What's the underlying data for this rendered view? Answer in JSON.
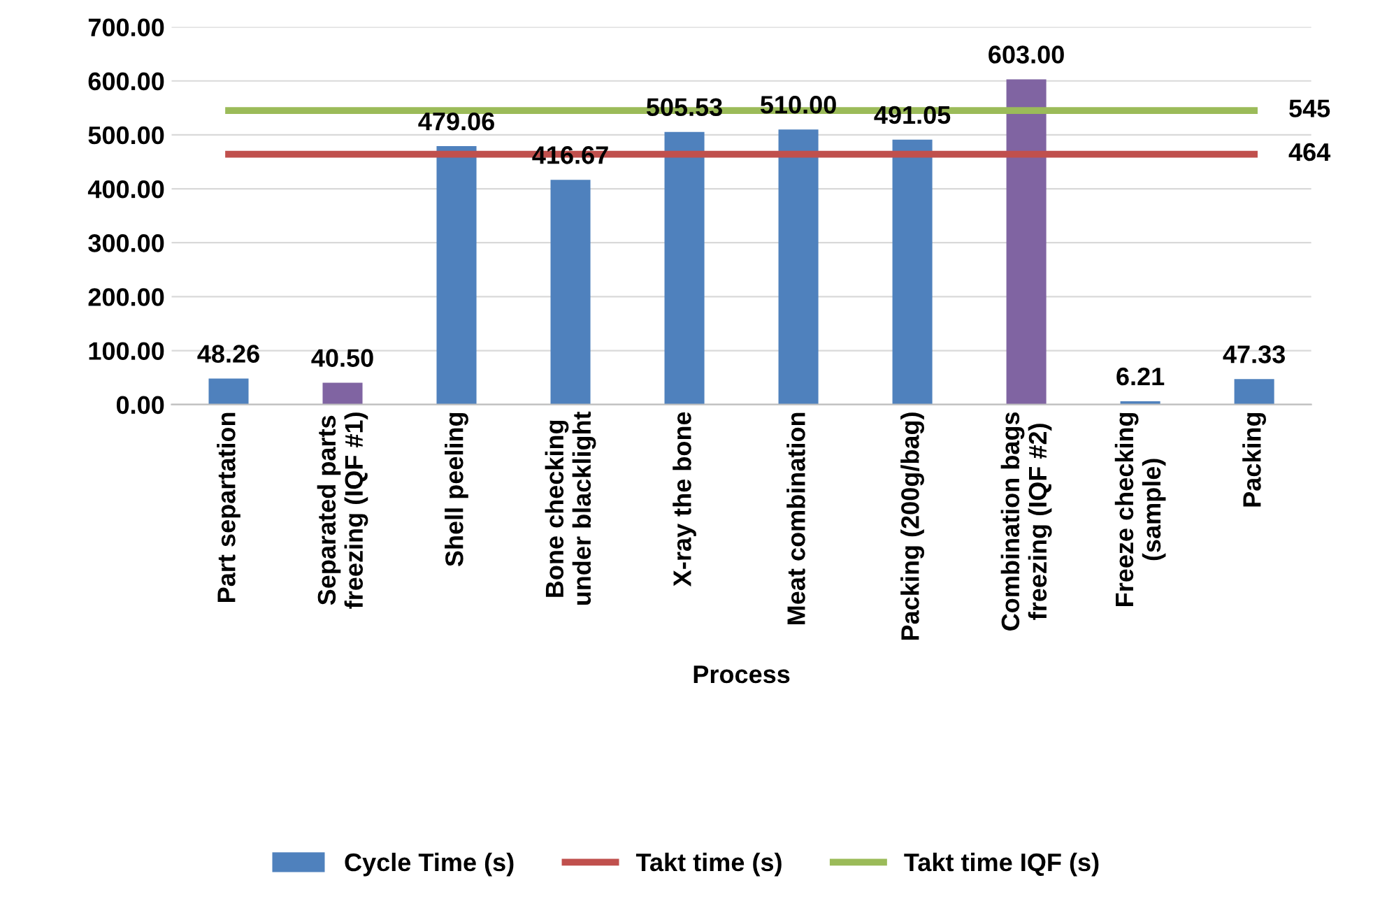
{
  "chart_data": {
    "type": "bar",
    "xlabel": "Process",
    "categories": [
      "Part separtation",
      "Separated parts freezing (IQF #1)",
      "Shell peeling",
      "Bone checking under blacklight",
      "X-ray the bone",
      "Meat combination",
      "Packing (200g/bag)",
      "Combination bags freezing (IQF #2)",
      "Freeze checking (sample)",
      "Packing"
    ],
    "series": [
      {
        "name": "Cycle Time (s)",
        "color": "#4f81bd",
        "colors": [
          "#4f81bd",
          "#8064a2",
          "#4f81bd",
          "#4f81bd",
          "#4f81bd",
          "#4f81bd",
          "#4f81bd",
          "#8064a2",
          "#4f81bd",
          "#4f81bd"
        ],
        "values": [
          48.26,
          40.5,
          479.06,
          416.67,
          505.53,
          510.0,
          491.05,
          603.0,
          6.21,
          47.33
        ],
        "value_labels": [
          "48.26",
          "40.50",
          "479.06",
          "416.67",
          "505.53",
          "510.00",
          "491.05",
          "603.00",
          "6.21",
          "47.33"
        ]
      },
      {
        "name": "Takt time (s)",
        "type": "line",
        "color": "#c0504d",
        "values": [
          464,
          464,
          464,
          464,
          464,
          464,
          464,
          464,
          464,
          464
        ],
        "value_labels": [
          null,
          null,
          null,
          null,
          null,
          null,
          null,
          null,
          null,
          "464"
        ]
      },
      {
        "name": "Takt time IQF (s)",
        "type": "line",
        "color": "#9bbb59",
        "values": [
          545,
          545,
          545,
          545,
          545,
          545,
          545,
          545,
          545,
          545
        ],
        "value_labels": [
          null,
          null,
          null,
          null,
          null,
          null,
          null,
          null,
          null,
          "545"
        ]
      }
    ],
    "ylim": [
      0,
      700
    ],
    "yticks": [
      {
        "value": 0,
        "label": "0.00"
      },
      {
        "value": 100,
        "label": "100.00"
      },
      {
        "value": 200,
        "label": "200.00"
      },
      {
        "value": 300,
        "label": "300.00"
      },
      {
        "value": 400,
        "label": "400.00"
      },
      {
        "value": 500,
        "label": "500.00"
      },
      {
        "value": 600,
        "label": "600.00"
      },
      {
        "value": 700,
        "label": "700.00"
      }
    ],
    "grid": "y",
    "legend": "bottom",
    "marker": "none",
    "line_style": "solid"
  }
}
